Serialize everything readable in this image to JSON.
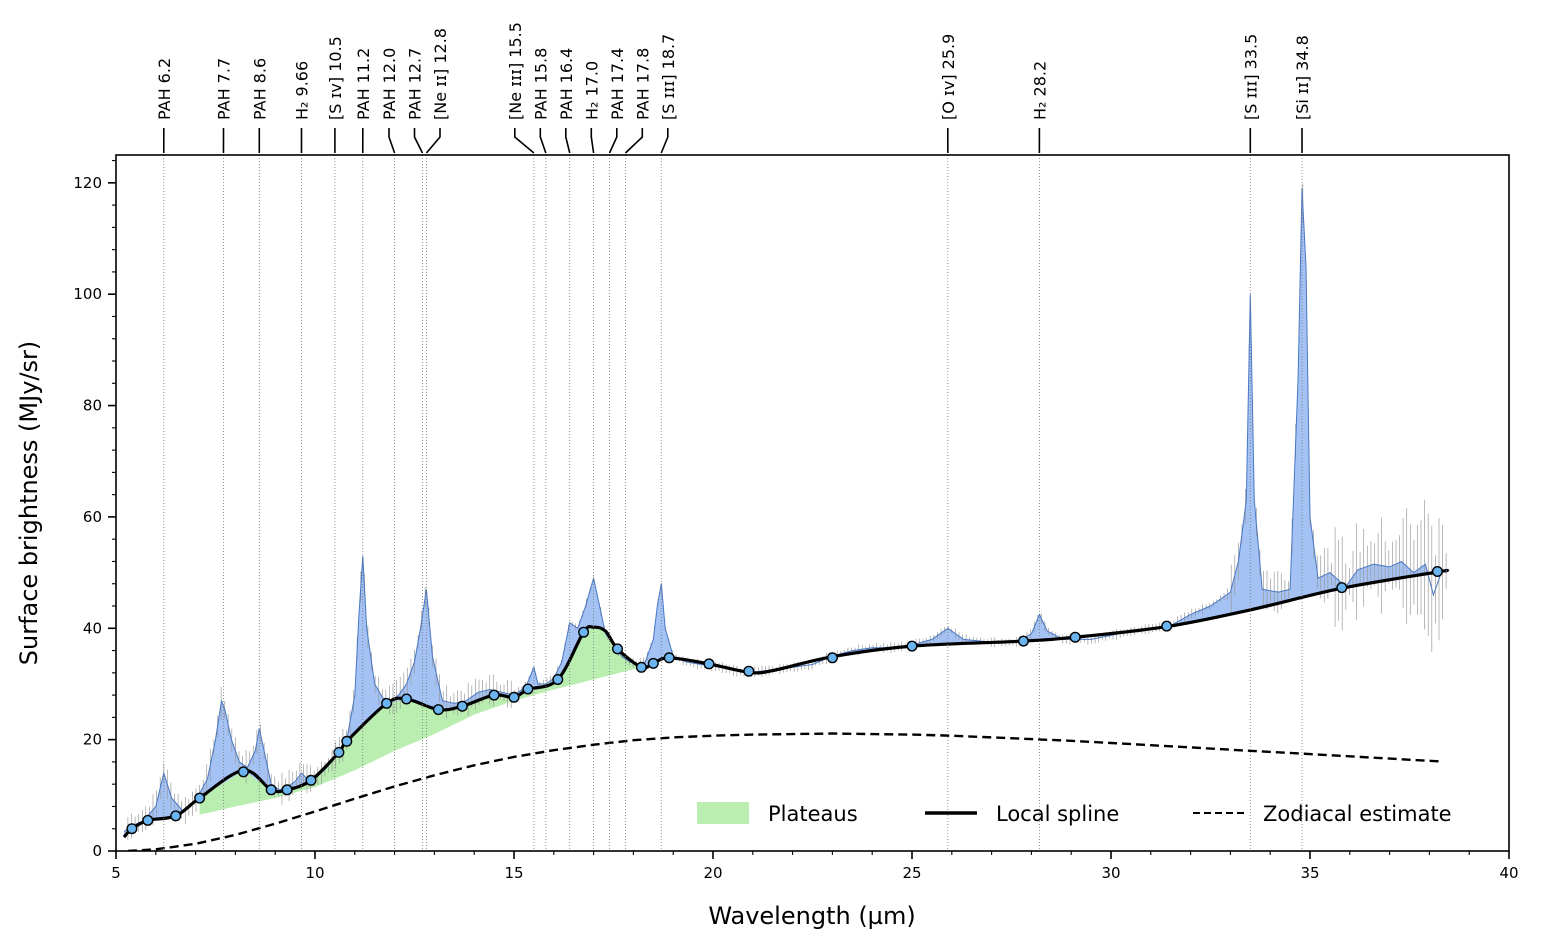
{
  "chart_data": {
    "type": "line",
    "xlabel": "Wavelength (µm)",
    "ylabel": "Surface brightness (MJy/sr)",
    "xlim": [
      5,
      40
    ],
    "ylim": [
      0,
      125
    ],
    "x_ticks": [
      5,
      10,
      15,
      20,
      25,
      30,
      35,
      40
    ],
    "y_ticks": [
      0,
      20,
      40,
      60,
      80,
      100,
      120
    ],
    "colors": {
      "observed_fill": "#a4c2f4",
      "observed_line": "#4a78c4",
      "plateau_fill": "#b9eeb0",
      "spline": "#000000",
      "anchor_fill": "#6ab4f0",
      "error_bars": "#9a9a9a",
      "zodiacal": "#000000"
    },
    "legend": {
      "position": "lower-right",
      "entries": [
        {
          "label": "Plateaus",
          "style": "fill"
        },
        {
          "label": "Local spline",
          "style": "solid"
        },
        {
          "label": "Zodiacal estimate",
          "style": "dashed"
        }
      ]
    },
    "line_labels": [
      {
        "label": "PAH 6.2",
        "x": 6.2
      },
      {
        "label": "PAH 7.7",
        "x": 7.7
      },
      {
        "label": "PAH 8.6",
        "x": 8.6
      },
      {
        "label": "H₂ 9.66",
        "x": 9.66
      },
      {
        "label": "[S ɪᴠ] 10.5",
        "x": 10.5
      },
      {
        "label": "PAH 11.2",
        "x": 11.2
      },
      {
        "label": "PAH 12.0",
        "x": 12.0
      },
      {
        "label": "PAH 12.7",
        "x": 12.7
      },
      {
        "label": "[Ne ɪɪ] 12.8",
        "x": 12.8
      },
      {
        "label": "[Ne ɪɪɪ] 15.5",
        "x": 15.5
      },
      {
        "label": "PAH 15.8",
        "x": 15.8
      },
      {
        "label": "PAH 16.4",
        "x": 16.4
      },
      {
        "label": "H₂ 17.0",
        "x": 17.0
      },
      {
        "label": "PAH 17.4",
        "x": 17.4
      },
      {
        "label": "PAH 17.8",
        "x": 17.8
      },
      {
        "label": "[S ɪɪɪ] 18.7",
        "x": 18.7
      },
      {
        "label": "[O ɪᴠ] 25.9",
        "x": 25.9
      },
      {
        "label": "H₂ 28.2",
        "x": 28.2
      },
      {
        "label": "[S ɪɪɪ] 33.5",
        "x": 33.5
      },
      {
        "label": "[Si ɪɪ] 34.8",
        "x": 34.8
      }
    ],
    "series": [
      {
        "name": "Observed spectrum",
        "x": [
          5.2,
          5.4,
          5.7,
          6.0,
          6.2,
          6.4,
          6.7,
          7.0,
          7.3,
          7.5,
          7.65,
          7.75,
          7.9,
          8.1,
          8.3,
          8.5,
          8.6,
          8.75,
          8.9,
          9.1,
          9.3,
          9.5,
          9.66,
          9.8,
          10.0,
          10.3,
          10.6,
          10.8,
          11.0,
          11.1,
          11.2,
          11.3,
          11.5,
          11.7,
          11.9,
          12.1,
          12.3,
          12.5,
          12.65,
          12.8,
          12.95,
          13.2,
          13.5,
          13.8,
          14.1,
          14.4,
          14.7,
          15.0,
          15.3,
          15.5,
          15.6,
          15.8,
          16.0,
          16.2,
          16.4,
          16.6,
          16.8,
          17.0,
          17.15,
          17.3,
          17.5,
          17.7,
          17.9,
          18.1,
          18.3,
          18.5,
          18.6,
          18.7,
          18.8,
          19.0,
          19.3,
          19.7,
          20.2,
          20.8,
          21.5,
          22.0,
          22.5,
          23.0,
          23.5,
          24.0,
          24.5,
          25.0,
          25.5,
          25.9,
          26.3,
          27.0,
          27.6,
          28.0,
          28.2,
          28.4,
          28.8,
          29.5,
          30.2,
          31.0,
          31.5,
          32.0,
          32.5,
          33.0,
          33.2,
          33.4,
          33.5,
          33.6,
          33.8,
          34.2,
          34.5,
          34.7,
          34.8,
          34.9,
          35.0,
          35.2,
          35.5,
          35.9,
          36.2,
          36.6,
          37.0,
          37.3,
          37.6,
          37.9,
          38.1,
          38.3,
          38.5
        ],
        "values": [
          3.5,
          4.5,
          5.5,
          8.0,
          14.0,
          9.5,
          7.0,
          9.0,
          13.0,
          20.0,
          27.0,
          25.0,
          20.0,
          16.0,
          15.0,
          18.0,
          22.0,
          17.0,
          12.0,
          11.0,
          11.5,
          12.5,
          14.0,
          13.0,
          13.0,
          15.0,
          18.0,
          20.0,
          28.0,
          42.0,
          53.0,
          40.0,
          30.0,
          27.5,
          27.0,
          28.0,
          30.0,
          34.0,
          40.0,
          47.0,
          35.0,
          27.0,
          26.5,
          27.0,
          28.5,
          29.0,
          28.5,
          28.0,
          29.5,
          33.0,
          30.0,
          30.0,
          31.0,
          34.0,
          41.0,
          40.0,
          44.0,
          49.0,
          44.0,
          39.0,
          37.0,
          35.0,
          34.0,
          33.5,
          34.0,
          38.0,
          44.0,
          48.0,
          40.0,
          35.0,
          34.0,
          33.5,
          33.0,
          32.0,
          32.5,
          33.0,
          33.5,
          35.0,
          36.0,
          36.5,
          36.5,
          37.0,
          38.0,
          40.0,
          38.0,
          37.5,
          37.5,
          39.0,
          42.5,
          39.5,
          38.0,
          38.0,
          39.0,
          40.0,
          40.5,
          42.5,
          44.0,
          46.5,
          52.0,
          63.0,
          100.0,
          63.0,
          47.0,
          46.5,
          47.0,
          85.0,
          119.0,
          105.0,
          60.0,
          49.0,
          50.0,
          47.5,
          50.5,
          51.5,
          51.0,
          52.0,
          50.0,
          51.5,
          46.0,
          50.0,
          50.5
        ]
      },
      {
        "name": "Local spline",
        "x": [
          5.2,
          5.4,
          5.8,
          6.5,
          7.1,
          8.2,
          8.9,
          9.3,
          9.9,
          10.6,
          10.8,
          11.8,
          12.3,
          13.1,
          13.7,
          14.5,
          15.0,
          15.35,
          16.1,
          16.75,
          17.0,
          17.3,
          17.6,
          18.2,
          18.5,
          18.9,
          19.9,
          20.9,
          21.5,
          23.0,
          25.0,
          27.8,
          29.1,
          31.4,
          33.5,
          35.8,
          38.2,
          38.4
        ],
        "values": [
          2.5,
          4.0,
          5.5,
          6.3,
          9.5,
          14.5,
          11.0,
          11.0,
          12.7,
          17.7,
          19.7,
          26.5,
          27.3,
          25.4,
          26.0,
          28.0,
          27.6,
          29.0,
          30.8,
          39.3,
          40.2,
          39.5,
          36.3,
          33.0,
          33.7,
          34.7,
          33.6,
          32.1,
          32.4,
          34.9,
          36.8,
          37.7,
          38.4,
          40.3,
          43.3,
          47.2,
          50.1,
          50.3
        ]
      },
      {
        "name": "Anchor points",
        "x": [
          5.4,
          5.8,
          6.5,
          7.1,
          8.2,
          8.9,
          9.3,
          9.9,
          10.6,
          10.8,
          11.8,
          12.3,
          13.1,
          13.7,
          14.5,
          15.0,
          15.35,
          16.1,
          16.75,
          17.6,
          18.2,
          18.5,
          18.9,
          19.9,
          20.9,
          23.0,
          25.0,
          27.8,
          29.1,
          31.4,
          35.8,
          38.2
        ],
        "values": [
          4.0,
          5.5,
          6.3,
          9.5,
          14.2,
          11.0,
          11.0,
          12.7,
          17.7,
          19.7,
          26.5,
          27.3,
          25.4,
          26.0,
          28.0,
          27.6,
          29.1,
          30.8,
          39.3,
          36.3,
          33.0,
          33.7,
          34.7,
          33.6,
          32.3,
          34.7,
          36.8,
          37.7,
          38.4,
          40.4,
          47.3,
          50.2
        ]
      },
      {
        "name": "Plateaus lower boundary",
        "x": [
          7.1,
          8.0,
          9.0,
          10.0,
          11.0,
          12.0,
          13.0,
          14.0,
          15.0,
          16.0,
          17.0,
          17.8,
          18.1
        ],
        "values": [
          6.5,
          8.0,
          9.5,
          11.5,
          14.5,
          18.0,
          21.0,
          24.5,
          27.0,
          29.0,
          30.8,
          32.3,
          32.8
        ]
      },
      {
        "name": "Zodiacal estimate",
        "x": [
          5.3,
          6.0,
          7.0,
          8.0,
          9.0,
          10.0,
          11.0,
          12.0,
          13.0,
          14.0,
          15.0,
          16.0,
          17.0,
          18.0,
          19.0,
          20.0,
          21.0,
          22.0,
          23.0,
          24.0,
          25.0,
          26.0,
          27.0,
          28.0,
          29.0,
          30.0,
          31.0,
          32.0,
          33.0,
          34.0,
          35.0,
          36.0,
          37.0,
          38.0,
          38.3
        ],
        "values": [
          0.0,
          0.3,
          1.3,
          2.9,
          4.9,
          7.1,
          9.4,
          11.6,
          13.6,
          15.4,
          16.9,
          18.1,
          19.1,
          19.9,
          20.4,
          20.7,
          20.9,
          21.0,
          21.1,
          21.0,
          20.9,
          20.7,
          20.4,
          20.1,
          19.8,
          19.4,
          19.0,
          18.6,
          18.2,
          17.8,
          17.4,
          17.0,
          16.6,
          16.2,
          16.1
        ]
      }
    ]
  }
}
